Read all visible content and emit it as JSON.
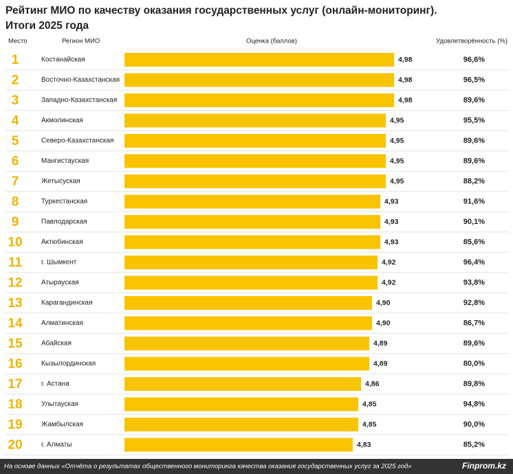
{
  "chart_data": {
    "type": "bar",
    "title": "Рейтинг МИО по качеству оказания государственных услуг (онлайн-мониторинг).",
    "subtitle": "Итоги 2025 года",
    "column_headers": [
      "Место",
      "Регион МИО",
      "Оценка (баллов)",
      "Удовлетворённость (%)"
    ],
    "ranks": [
      1,
      2,
      3,
      4,
      5,
      6,
      7,
      8,
      9,
      10,
      11,
      12,
      13,
      14,
      15,
      16,
      17,
      18,
      19,
      20
    ],
    "categories": [
      "Костанайская",
      "Восточно-Казахстанская",
      "Западно-Казахстанская",
      "Акмолинская",
      "Северо-Казахстанская",
      "Мангистауская",
      "Жетысуская",
      "Туркестанская",
      "Павлодарская",
      "Актюбинская",
      "г. Шымкент",
      "Атырауская",
      "Карагандинская",
      "Алматинская",
      "Абайская",
      "Кызылординская",
      "г. Астана",
      "Улытауская",
      "Жамбылская",
      "г. Алматы"
    ],
    "values": [
      4.98,
      4.98,
      4.98,
      4.95,
      4.95,
      4.95,
      4.95,
      4.93,
      4.93,
      4.93,
      4.92,
      4.92,
      4.9,
      4.9,
      4.89,
      4.89,
      4.86,
      4.85,
      4.85,
      4.83
    ],
    "value_labels": [
      "4,98",
      "4,98",
      "4,98",
      "4,95",
      "4,95",
      "4,95",
      "4,95",
      "4,93",
      "4,93",
      "4,93",
      "4,92",
      "4,92",
      "4,90",
      "4,90",
      "4,89",
      "4,89",
      "4,86",
      "4,85",
      "4,85",
      "4,83"
    ],
    "satisfaction": {
      "values": [
        96.6,
        96.5,
        89.6,
        95.5,
        89.6,
        89.6,
        88.2,
        91.6,
        90.1,
        85.6,
        96.4,
        93.8,
        92.8,
        86.7,
        89.6,
        80.0,
        89.8,
        94.8,
        90.0,
        85.2
      ],
      "value_labels": [
        "96,6%",
        "96,5%",
        "89,6%",
        "95,5%",
        "89,6%",
        "89,6%",
        "88,2%",
        "91,6%",
        "90,1%",
        "85,6%",
        "96,4%",
        "93,8%",
        "92,8%",
        "86,7%",
        "89,6%",
        "80,0%",
        "89,8%",
        "94,8%",
        "90,0%",
        "85,2%"
      ]
    },
    "xlim": [
      4.0,
      5.0
    ],
    "color": "#f8c400",
    "rank_color": "#f0b400",
    "source": "На основе данных «Отчёта о результатах общественного мониторинга качества оказания государственных услуг за 2025 год»",
    "brand": "Finprom.kz"
  }
}
